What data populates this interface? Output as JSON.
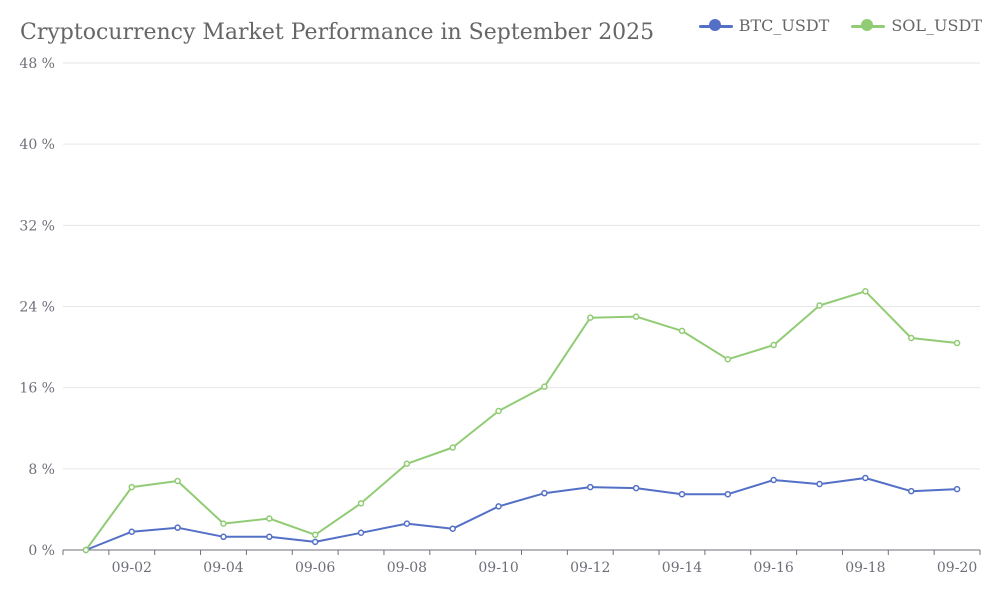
{
  "chart_data": {
    "type": "line",
    "title": "Cryptocurrency Market Performance in September 2025",
    "x": [
      "09-01",
      "09-02",
      "09-03",
      "09-04",
      "09-05",
      "09-06",
      "09-07",
      "09-08",
      "09-09",
      "09-10",
      "09-11",
      "09-12",
      "09-13",
      "09-14",
      "09-15",
      "09-16",
      "09-17",
      "09-18",
      "09-19",
      "09-20"
    ],
    "x_tick_labels": [
      "09-02",
      "09-04",
      "09-06",
      "09-08",
      "09-10",
      "09-12",
      "09-14",
      "09-16",
      "09-18",
      "09-20"
    ],
    "y_tick_labels": [
      "0 %",
      "8 %",
      "16 %",
      "24 %",
      "32 %",
      "40 %",
      "48 %"
    ],
    "ylim": [
      0,
      48
    ],
    "yunit": "%",
    "grid": true,
    "legend_position": "top-right",
    "series": [
      {
        "name": "BTC_USDT",
        "color": "#5470c6",
        "values": [
          0,
          1.8,
          2.2,
          1.3,
          1.3,
          0.8,
          1.7,
          2.6,
          2.1,
          4.3,
          5.6,
          6.2,
          6.1,
          5.5,
          5.5,
          6.9,
          6.5,
          7.1,
          5.8,
          6.0
        ]
      },
      {
        "name": "SOL_USDT",
        "color": "#91cc75",
        "values": [
          0,
          6.2,
          6.8,
          2.6,
          3.1,
          1.5,
          4.6,
          8.5,
          10.1,
          13.7,
          16.1,
          22.9,
          23.0,
          21.6,
          18.8,
          20.2,
          24.1,
          25.5,
          20.9,
          20.4
        ]
      }
    ]
  }
}
